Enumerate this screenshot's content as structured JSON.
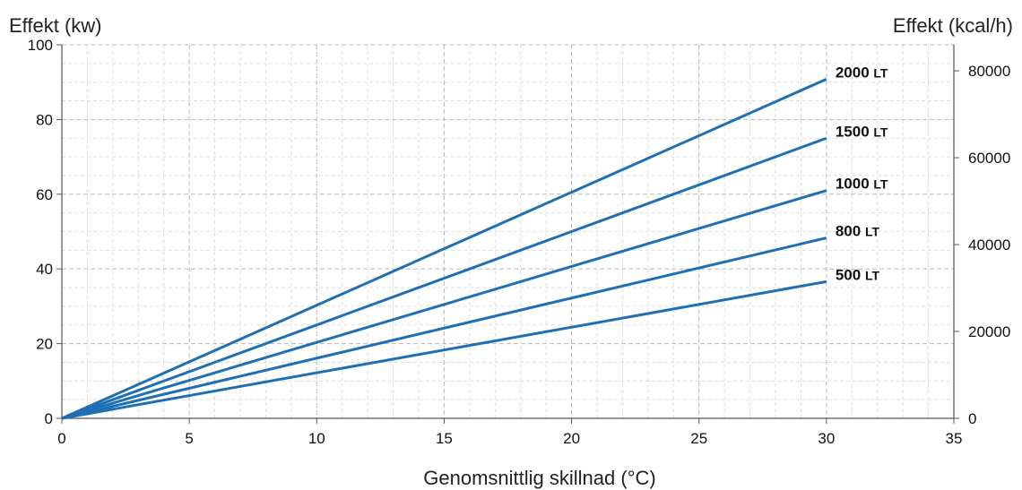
{
  "chart_data": {
    "type": "line",
    "ylabel": "Effekt (kw)",
    "y2label": "Effekt (kcal/h)",
    "xlabel": "Genomsnittlig skillnad (°C)",
    "xlim": [
      0,
      35
    ],
    "ylim": [
      0,
      100
    ],
    "y2lim": [
      0,
      86000
    ],
    "xticks": [
      0,
      5,
      10,
      15,
      20,
      25,
      30,
      35
    ],
    "yticks": [
      0,
      20,
      40,
      60,
      80,
      100
    ],
    "y2ticks": [
      0,
      20000,
      40000,
      60000,
      80000
    ],
    "grid": true,
    "line_color": "#1f6fb5",
    "series": [
      {
        "name": "2000",
        "unit": "LT",
        "x": [
          0,
          30
        ],
        "y": [
          0,
          90.8
        ]
      },
      {
        "name": "1500",
        "unit": "LT",
        "x": [
          0,
          30
        ],
        "y": [
          0,
          75.0
        ]
      },
      {
        "name": "1000",
        "unit": "LT",
        "x": [
          0,
          30
        ],
        "y": [
          0,
          61.0
        ]
      },
      {
        "name": "800",
        "unit": "LT",
        "x": [
          0,
          30
        ],
        "y": [
          0,
          48.3
        ]
      },
      {
        "name": "500",
        "unit": "LT",
        "x": [
          0,
          30
        ],
        "y": [
          0,
          36.6
        ]
      }
    ]
  }
}
